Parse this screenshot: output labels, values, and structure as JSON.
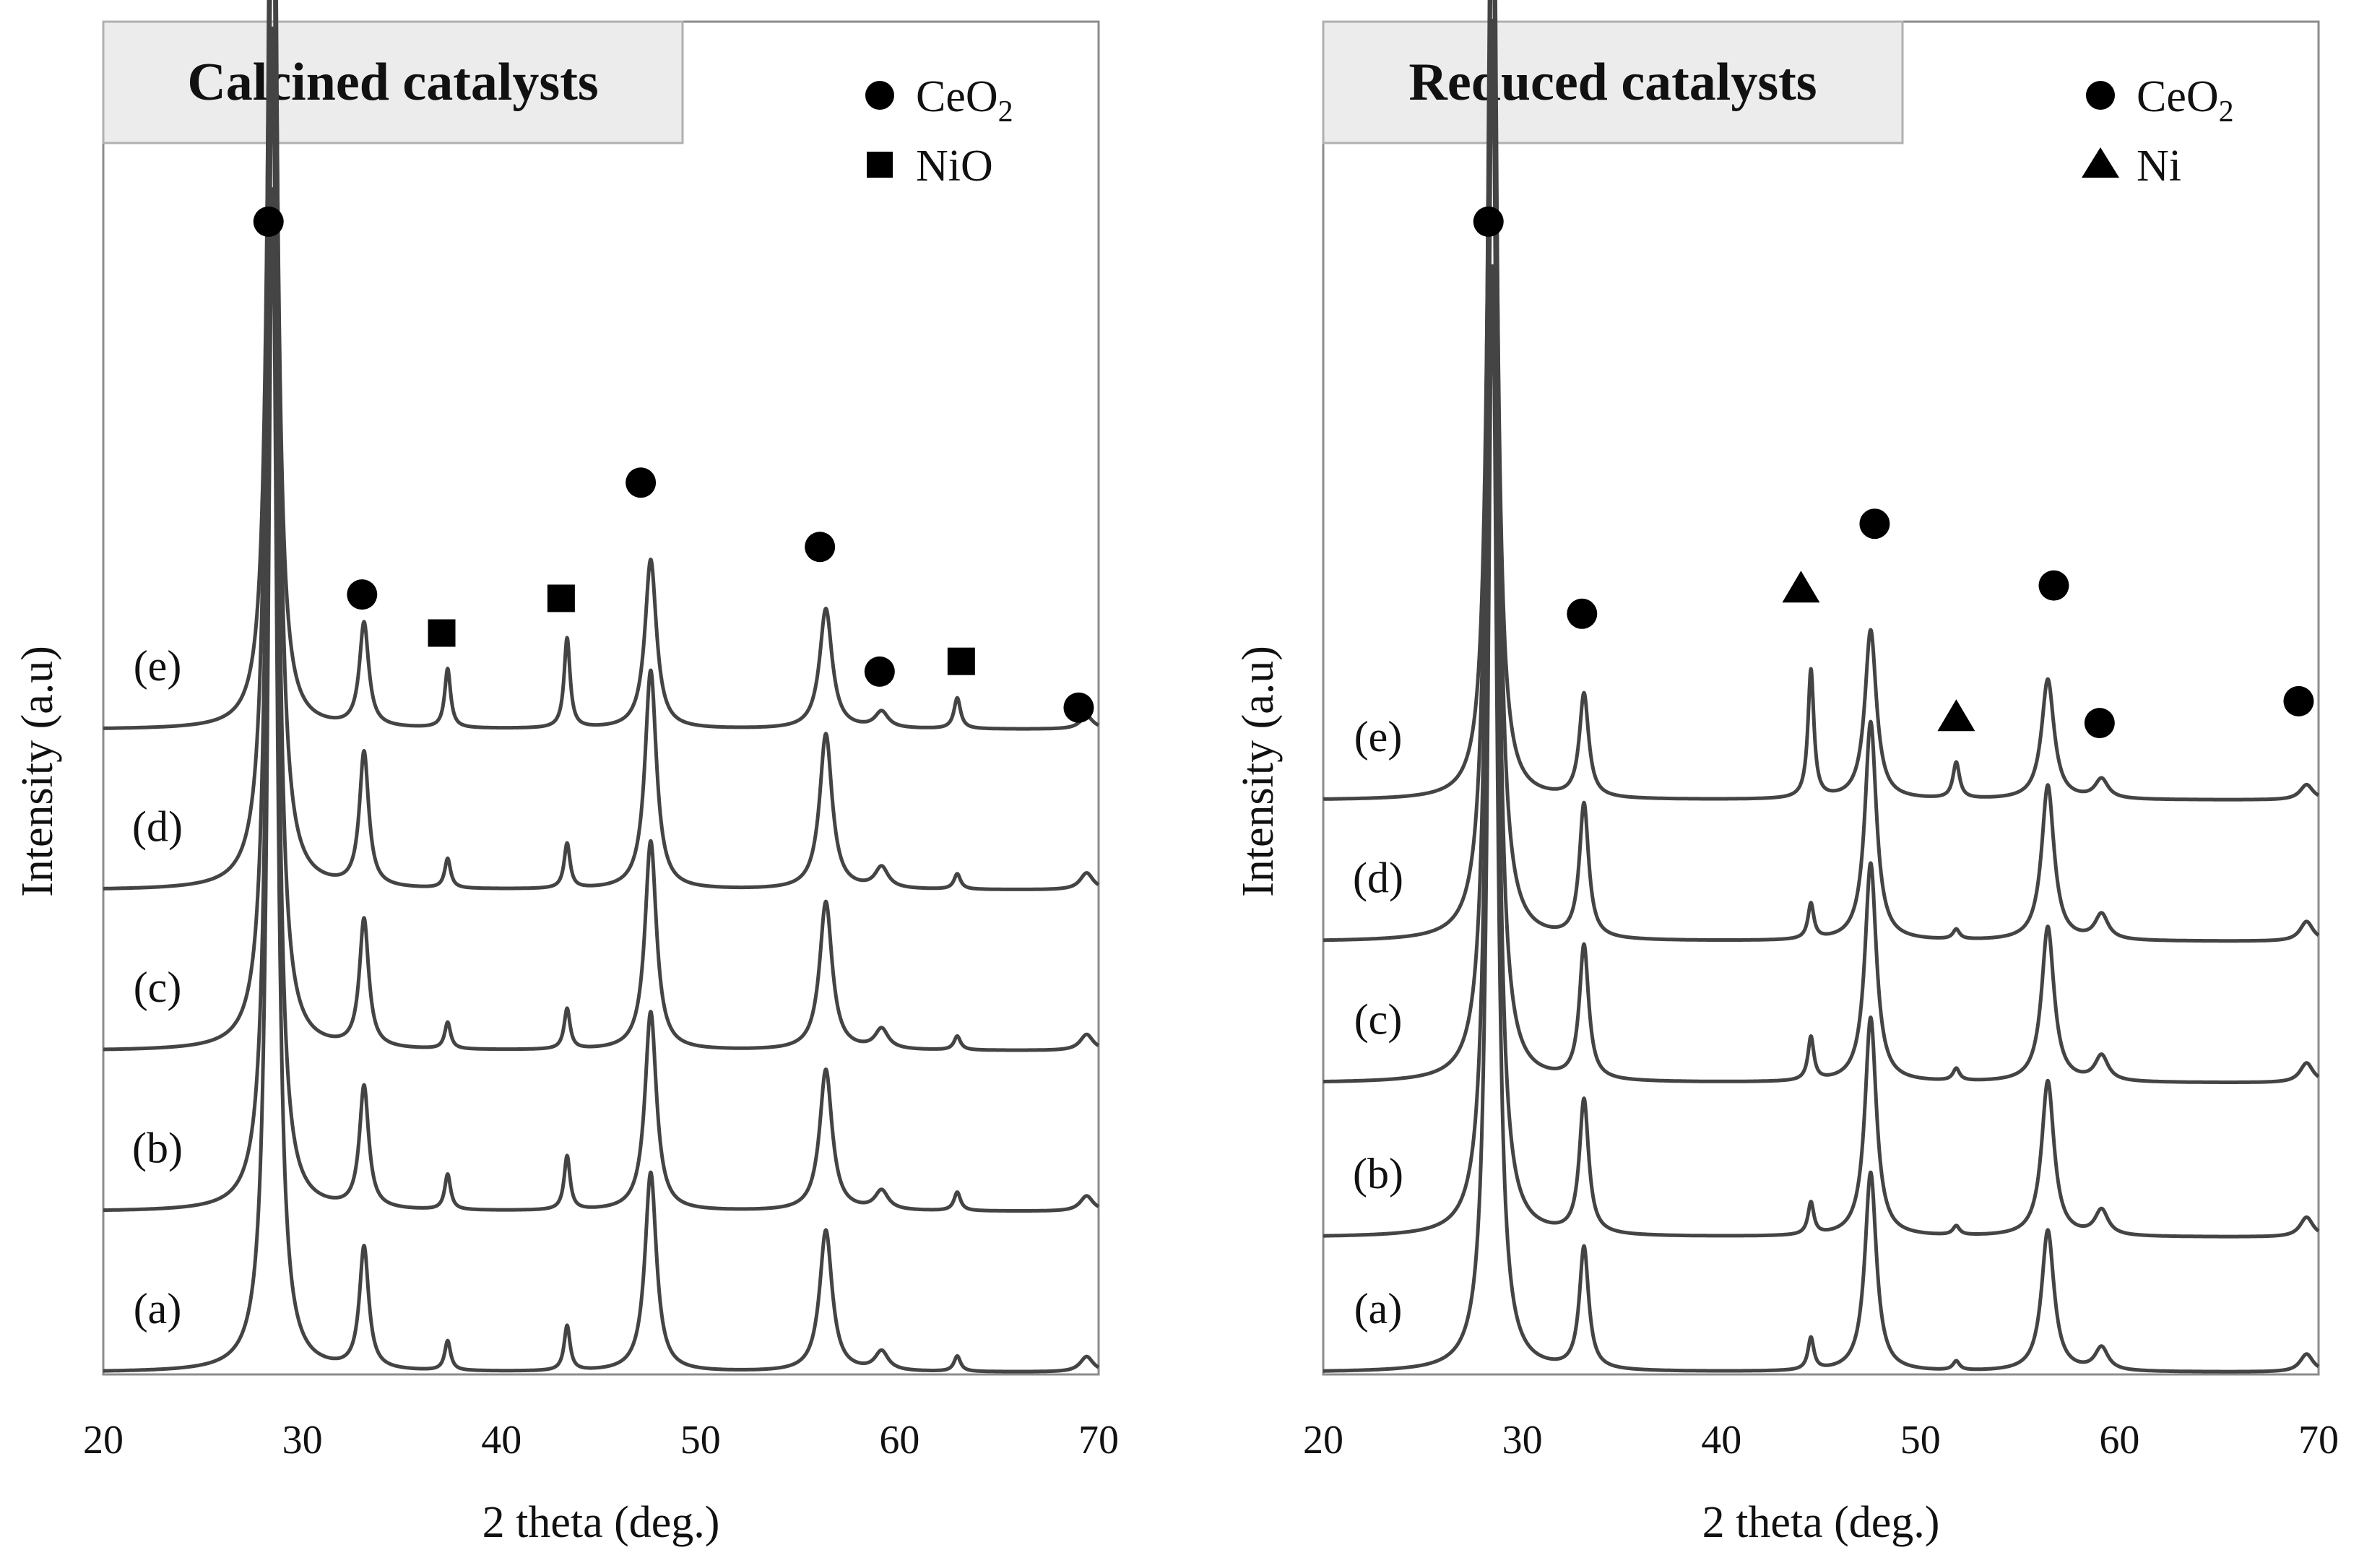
{
  "chart_data": [
    {
      "type": "line",
      "title": "Calcined catalysts",
      "xlabel": "2 theta (deg.)",
      "ylabel": "Intensity (a.u)",
      "xlim": [
        20,
        70
      ],
      "xticks": [
        "20",
        "30",
        "40",
        "50",
        "60",
        "70"
      ],
      "legend": [
        {
          "marker": "circle",
          "label": "CeO",
          "sub": "2"
        },
        {
          "marker": "square",
          "label": "NiO",
          "sub": ""
        }
      ],
      "legend_position": "top-right",
      "series": [
        {
          "name": "(a)",
          "baseline": 0.0,
          "ceo2_scale": 1.0,
          "sec_scale": 1.0
        },
        {
          "name": "(b)",
          "baseline": 0.125,
          "ceo2_scale": 1.0,
          "sec_scale": 1.2
        },
        {
          "name": "(c)",
          "baseline": 0.25,
          "ceo2_scale": 1.05,
          "sec_scale": 0.9
        },
        {
          "name": "(d)",
          "baseline": 0.375,
          "ceo2_scale": 1.1,
          "sec_scale": 1.0
        },
        {
          "name": "(e)",
          "baseline": 0.5,
          "ceo2_scale": 0.85,
          "sec_scale": 2.0
        }
      ],
      "peaks": [
        {
          "phase": "CeO2",
          "x": 28.5,
          "h": 0.92,
          "w": 0.28
        },
        {
          "phase": "CeO2",
          "x": 33.1,
          "h": 0.095,
          "w": 0.28
        },
        {
          "phase": "CeO2",
          "x": 47.5,
          "h": 0.155,
          "w": 0.35
        },
        {
          "phase": "CeO2",
          "x": 56.3,
          "h": 0.11,
          "w": 0.38
        },
        {
          "phase": "CeO2",
          "x": 59.1,
          "h": 0.015,
          "w": 0.4
        },
        {
          "phase": "CeO2",
          "x": 69.4,
          "h": 0.012,
          "w": 0.4
        },
        {
          "phase": "NiO",
          "x": 37.3,
          "h": 0.023,
          "w": 0.18
        },
        {
          "phase": "NiO",
          "x": 43.3,
          "h": 0.035,
          "w": 0.18
        },
        {
          "phase": "NiO",
          "x": 62.9,
          "h": 0.012,
          "w": 0.2
        }
      ],
      "markers": [
        {
          "shape": "circle",
          "x": 28.3,
          "y": 0.895
        },
        {
          "shape": "circle",
          "x": 33.0,
          "y": 0.605
        },
        {
          "shape": "square",
          "x": 37.0,
          "y": 0.575
        },
        {
          "shape": "square",
          "x": 43.0,
          "y": 0.602
        },
        {
          "shape": "circle",
          "x": 47.0,
          "y": 0.692
        },
        {
          "shape": "circle",
          "x": 56.0,
          "y": 0.642
        },
        {
          "shape": "circle",
          "x": 59.0,
          "y": 0.545
        },
        {
          "shape": "square",
          "x": 63.1,
          "y": 0.553
        },
        {
          "shape": "circle",
          "x": 69.0,
          "y": 0.517
        }
      ]
    },
    {
      "type": "line",
      "title": "Reduced catalysts",
      "xlabel": "2 theta (deg.)",
      "ylabel": "Intensity (a.u)",
      "xlim": [
        20,
        70
      ],
      "xticks": [
        "20",
        "30",
        "40",
        "50",
        "60",
        "70"
      ],
      "legend": [
        {
          "marker": "circle",
          "label": "CeO",
          "sub": "2"
        },
        {
          "marker": "triangle",
          "label": "Ni",
          "sub": ""
        }
      ],
      "legend_position": "top-right",
      "series": [
        {
          "name": "(a)",
          "baseline": 0.0,
          "ceo2_scale": 1.0,
          "sec_scale": 1.0
        },
        {
          "name": "(b)",
          "baseline": 0.105,
          "ceo2_scale": 1.1,
          "sec_scale": 1.0
        },
        {
          "name": "(c)",
          "baseline": 0.225,
          "ceo2_scale": 1.1,
          "sec_scale": 1.35
        },
        {
          "name": "(d)",
          "baseline": 0.335,
          "ceo2_scale": 1.1,
          "sec_scale": 1.1
        },
        {
          "name": "(e)",
          "baseline": 0.445,
          "ceo2_scale": 0.85,
          "sec_scale": 4.0
        }
      ],
      "peaks": [
        {
          "phase": "CeO2",
          "x": 28.5,
          "h": 0.86,
          "w": 0.28
        },
        {
          "phase": "CeO2",
          "x": 33.1,
          "h": 0.095,
          "w": 0.28
        },
        {
          "phase": "CeO2",
          "x": 47.5,
          "h": 0.155,
          "w": 0.35
        },
        {
          "phase": "CeO2",
          "x": 56.4,
          "h": 0.11,
          "w": 0.38
        },
        {
          "phase": "CeO2",
          "x": 59.1,
          "h": 0.018,
          "w": 0.4
        },
        {
          "phase": "CeO2",
          "x": 69.4,
          "h": 0.014,
          "w": 0.4
        },
        {
          "phase": "Ni",
          "x": 44.5,
          "h": 0.025,
          "w": 0.18
        },
        {
          "phase": "Ni",
          "x": 51.8,
          "h": 0.007,
          "w": 0.2
        }
      ],
      "markers": [
        {
          "shape": "circle",
          "x": 28.3,
          "y": 0.895
        },
        {
          "shape": "circle",
          "x": 33.0,
          "y": 0.59
        },
        {
          "shape": "triangle",
          "x": 44.0,
          "y": 0.61
        },
        {
          "shape": "circle",
          "x": 47.7,
          "y": 0.66
        },
        {
          "shape": "triangle",
          "x": 51.8,
          "y": 0.51
        },
        {
          "shape": "circle",
          "x": 56.7,
          "y": 0.612
        },
        {
          "shape": "circle",
          "x": 59.0,
          "y": 0.505
        },
        {
          "shape": "circle",
          "x": 69.0,
          "y": 0.522
        }
      ]
    }
  ]
}
